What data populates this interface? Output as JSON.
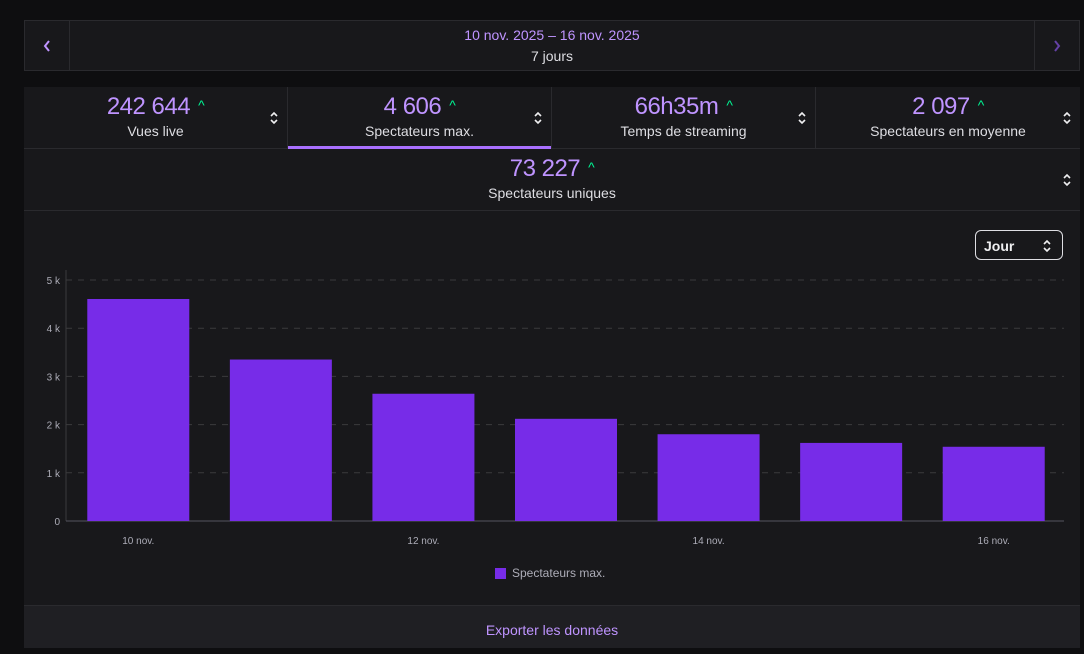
{
  "date_nav": {
    "prev_icon": "chevron-left-icon",
    "next_icon": "chevron-right-icon",
    "range": "10 nov. 2025 – 16 nov. 2025",
    "duration": "7 jours"
  },
  "stats": [
    {
      "value": "242644",
      "label": "Vues live",
      "trend": "up"
    },
    {
      "value": "4606",
      "label": "Spectateurs max.",
      "trend": "up",
      "active": true
    },
    {
      "value": "66h35m",
      "label": "Temps de streaming",
      "trend": "up"
    },
    {
      "value": "2097",
      "label": "Spectateurs en moyenne",
      "trend": "up"
    },
    {
      "value": "73227",
      "label": "Spectateurs uniques",
      "trend": "up"
    }
  ],
  "display_values": [
    "242 644",
    "4 606",
    "66h35m",
    "2 097",
    "73 227"
  ],
  "period_select": {
    "value": "Jour"
  },
  "colors": {
    "accent": "#bf94ff",
    "bar": "#772ce8",
    "trend_up": "#00f593"
  },
  "chart_data": {
    "type": "bar",
    "categories": [
      "10 nov.",
      "11 nov.",
      "12 nov.",
      "13 nov.",
      "14 nov.",
      "15 nov.",
      "16 nov."
    ],
    "x_tick_labels": [
      "10 nov.",
      "",
      "12 nov.",
      "",
      "14 nov.",
      "",
      "16 nov."
    ],
    "series": [
      {
        "name": "Spectateurs max.",
        "values": [
          4606,
          3350,
          2640,
          2120,
          1800,
          1620,
          1540
        ]
      }
    ],
    "y_ticks": [
      "0",
      "1 k",
      "2 k",
      "3 k",
      "4 k",
      "5 k"
    ],
    "ylim": [
      0,
      5000
    ],
    "grid": true,
    "legend": "bottom"
  },
  "export_label": "Exporter les données"
}
